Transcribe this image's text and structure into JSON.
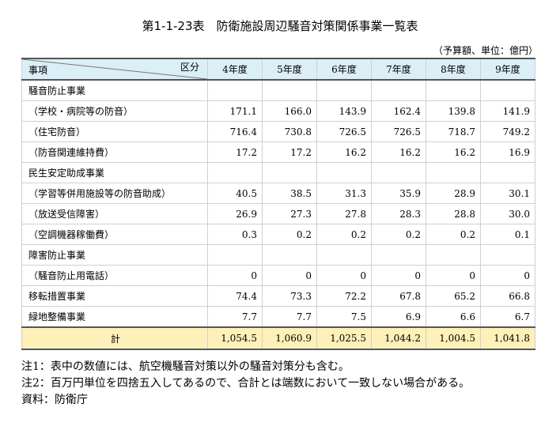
{
  "title": "第1-1-23表　防衛施設周辺騒音対策関係事業一覧表",
  "unit": "（予算額、単位：億円）",
  "table": {
    "corner_item": "事項",
    "corner_division": "区分",
    "columns": [
      "4年度",
      "5年度",
      "6年度",
      "7年度",
      "8年度",
      "9年度"
    ],
    "rows": [
      {
        "label": "騒音防止事業",
        "values": [
          "",
          "",
          "",
          "",
          "",
          ""
        ]
      },
      {
        "label": "（学校・病院等の防音）",
        "values": [
          "171.1",
          "166.0",
          "143.9",
          "162.4",
          "139.8",
          "141.9"
        ]
      },
      {
        "label": "（住宅防音）",
        "values": [
          "716.4",
          "730.8",
          "726.5",
          "726.5",
          "718.7",
          "749.2"
        ]
      },
      {
        "label": "（防音関連維持費）",
        "values": [
          "17.2",
          "17.2",
          "16.2",
          "16.2",
          "16.2",
          "16.9"
        ]
      },
      {
        "label": "民生安定助成事業",
        "values": [
          "",
          "",
          "",
          "",
          "",
          ""
        ]
      },
      {
        "label": "（学習等併用施設等の防音助成）",
        "values": [
          "40.5",
          "38.5",
          "31.3",
          "35.9",
          "28.9",
          "30.1"
        ]
      },
      {
        "label": "（放送受信障害）",
        "values": [
          "26.9",
          "27.3",
          "27.8",
          "28.3",
          "28.8",
          "30.0"
        ]
      },
      {
        "label": "（空調機器稼働費）",
        "values": [
          "0.3",
          "0.2",
          "0.2",
          "0.2",
          "0.2",
          "0.1"
        ]
      },
      {
        "label": "障害防止事業",
        "values": [
          "",
          "",
          "",
          "",
          "",
          ""
        ]
      },
      {
        "label": "（騒音防止用電話）",
        "values": [
          "0",
          "0",
          "0",
          "0",
          "0",
          "0"
        ]
      },
      {
        "label": "移転措置事業",
        "values": [
          "74.4",
          "73.3",
          "72.2",
          "67.8",
          "65.2",
          "66.8"
        ]
      },
      {
        "label": "緑地整備事業",
        "values": [
          "7.7",
          "7.7",
          "7.5",
          "6.9",
          "6.6",
          "6.7"
        ]
      }
    ],
    "total": {
      "label": "計",
      "values": [
        "1,054.5",
        "1,060.9",
        "1,025.5",
        "1,044.2",
        "1,004.5",
        "1,041.8"
      ]
    }
  },
  "notes": [
    "注1：表中の数値には、航空機騒音対策以外の騒音対策分も含む。",
    "注2：百万円単位を四捨五入してあるので、合計とは端数において一致しない場合がある。",
    "資料：防衛庁"
  ]
}
